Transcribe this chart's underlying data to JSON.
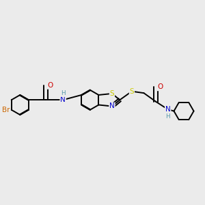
{
  "bg_color": "#ebebeb",
  "atom_colors": {
    "C": "#000000",
    "N": "#0000cc",
    "O": "#cc0000",
    "S": "#cccc00",
    "Br": "#cc6600",
    "H": "#5599aa"
  },
  "bond_lw": 1.4,
  "font_size": 7.5,
  "fig_w": 3.0,
  "fig_h": 3.0,
  "dpi": 100
}
